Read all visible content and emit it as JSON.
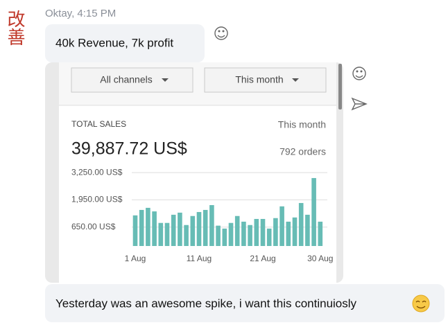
{
  "avatar": "改善",
  "header": "Oktay, 4:15 PM",
  "messages": [
    "40k Revenue, 7k profit",
    "Yesterday was an awesome spike, i want this continuiosly"
  ],
  "screenshot": {
    "filters": [
      "All channels",
      "This month"
    ],
    "period": "This month",
    "orders": "792 orders"
  },
  "chart_data": {
    "type": "bar",
    "title": "TOTAL SALES",
    "subtitle": "39,887.72 US$",
    "color": "#67bcb5",
    "categories": [
      "1 Aug",
      null,
      null,
      null,
      null,
      null,
      null,
      null,
      null,
      null,
      "11 Aug",
      null,
      null,
      null,
      null,
      null,
      null,
      null,
      null,
      null,
      "21 Aug",
      null,
      null,
      null,
      null,
      null,
      null,
      null,
      null,
      "30 Aug"
    ],
    "values": [
      1210,
      1470,
      1570,
      1400,
      850,
      850,
      1240,
      1340,
      750,
      1180,
      1370,
      1470,
      1700,
      720,
      580,
      850,
      1180,
      910,
      750,
      1040,
      1040,
      580,
      1080,
      1640,
      910,
      1110,
      1800,
      1240,
      2990,
      910
    ],
    "ylim": [
      -250,
      3550
    ],
    "yticks": [
      {
        "value": 650,
        "label": "650.00 US$"
      },
      {
        "value": 1950,
        "label": "1,950.00 US$"
      },
      {
        "value": 3250,
        "label": "3,250.00 US$"
      }
    ],
    "grid": true
  }
}
